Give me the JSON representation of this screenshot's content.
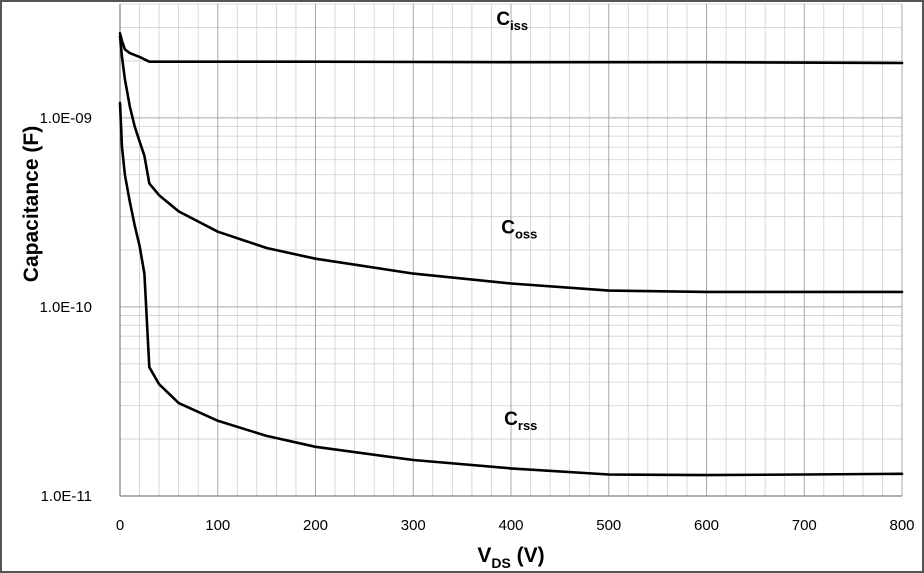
{
  "chart_data": {
    "type": "line",
    "yscale": "log",
    "xlim": [
      0,
      800
    ],
    "ylim": [
      1e-11,
      4e-09
    ],
    "x_ticks": [
      0,
      100,
      200,
      300,
      400,
      500,
      600,
      700,
      800
    ],
    "x_tick_labels": [
      "0",
      "100",
      "200",
      "300",
      "400",
      "500",
      "600",
      "700",
      "800"
    ],
    "y_ticks": [
      1e-11,
      1e-10,
      1e-09
    ],
    "y_tick_labels": [
      "1.0E-11",
      "1.0E-10",
      "1.0E-09"
    ],
    "xlabel": {
      "main": "V",
      "sub": "DS",
      "unit": " (V)"
    },
    "ylabel": "Capacitance (F)",
    "grid": true,
    "line_color": "#000000",
    "series": [
      {
        "name": "Ciss",
        "label_main": "C",
        "label_sub": "iss",
        "label_at": {
          "x": 385,
          "y": 3.1e-09
        },
        "x": [
          0,
          2,
          5,
          10,
          20,
          30,
          50,
          100,
          200,
          400,
          600,
          800
        ],
        "y": [
          2.8e-09,
          2.55e-09,
          2.3e-09,
          2.2e-09,
          2.1e-09,
          1.98e-09,
          1.98e-09,
          1.98e-09,
          1.98e-09,
          1.97e-09,
          1.97e-09,
          1.95e-09
        ]
      },
      {
        "name": "Coss",
        "label_main": "C",
        "label_sub": "oss",
        "label_at": {
          "x": 390,
          "y": 2.45e-10
        },
        "x": [
          0,
          2,
          5,
          10,
          15,
          20,
          25,
          30,
          40,
          60,
          100,
          150,
          200,
          300,
          400,
          500,
          600,
          700,
          800
        ],
        "y": [
          2.7e-09,
          2.1e-09,
          1.6e-09,
          1.15e-09,
          9e-10,
          7.5e-10,
          6.3e-10,
          4.5e-10,
          3.9e-10,
          3.2e-10,
          2.5e-10,
          2.05e-10,
          1.8e-10,
          1.5e-10,
          1.33e-10,
          1.22e-10,
          1.2e-10,
          1.2e-10,
          1.2e-10
        ]
      },
      {
        "name": "Crss",
        "label_main": "C",
        "label_sub": "rss",
        "label_at": {
          "x": 393,
          "y": 2.38e-11
        },
        "x": [
          0,
          2,
          5,
          10,
          15,
          20,
          25,
          30,
          40,
          60,
          100,
          150,
          200,
          300,
          400,
          500,
          600,
          700,
          800
        ],
        "y": [
          1.2e-09,
          7e-10,
          5e-10,
          3.6e-10,
          2.7e-10,
          2.1e-10,
          1.5e-10,
          4.8e-11,
          3.9e-11,
          3.1e-11,
          2.5e-11,
          2.08e-11,
          1.82e-11,
          1.55e-11,
          1.4e-11,
          1.3e-11,
          1.29e-11,
          1.3e-11,
          1.31e-11
        ]
      }
    ]
  }
}
